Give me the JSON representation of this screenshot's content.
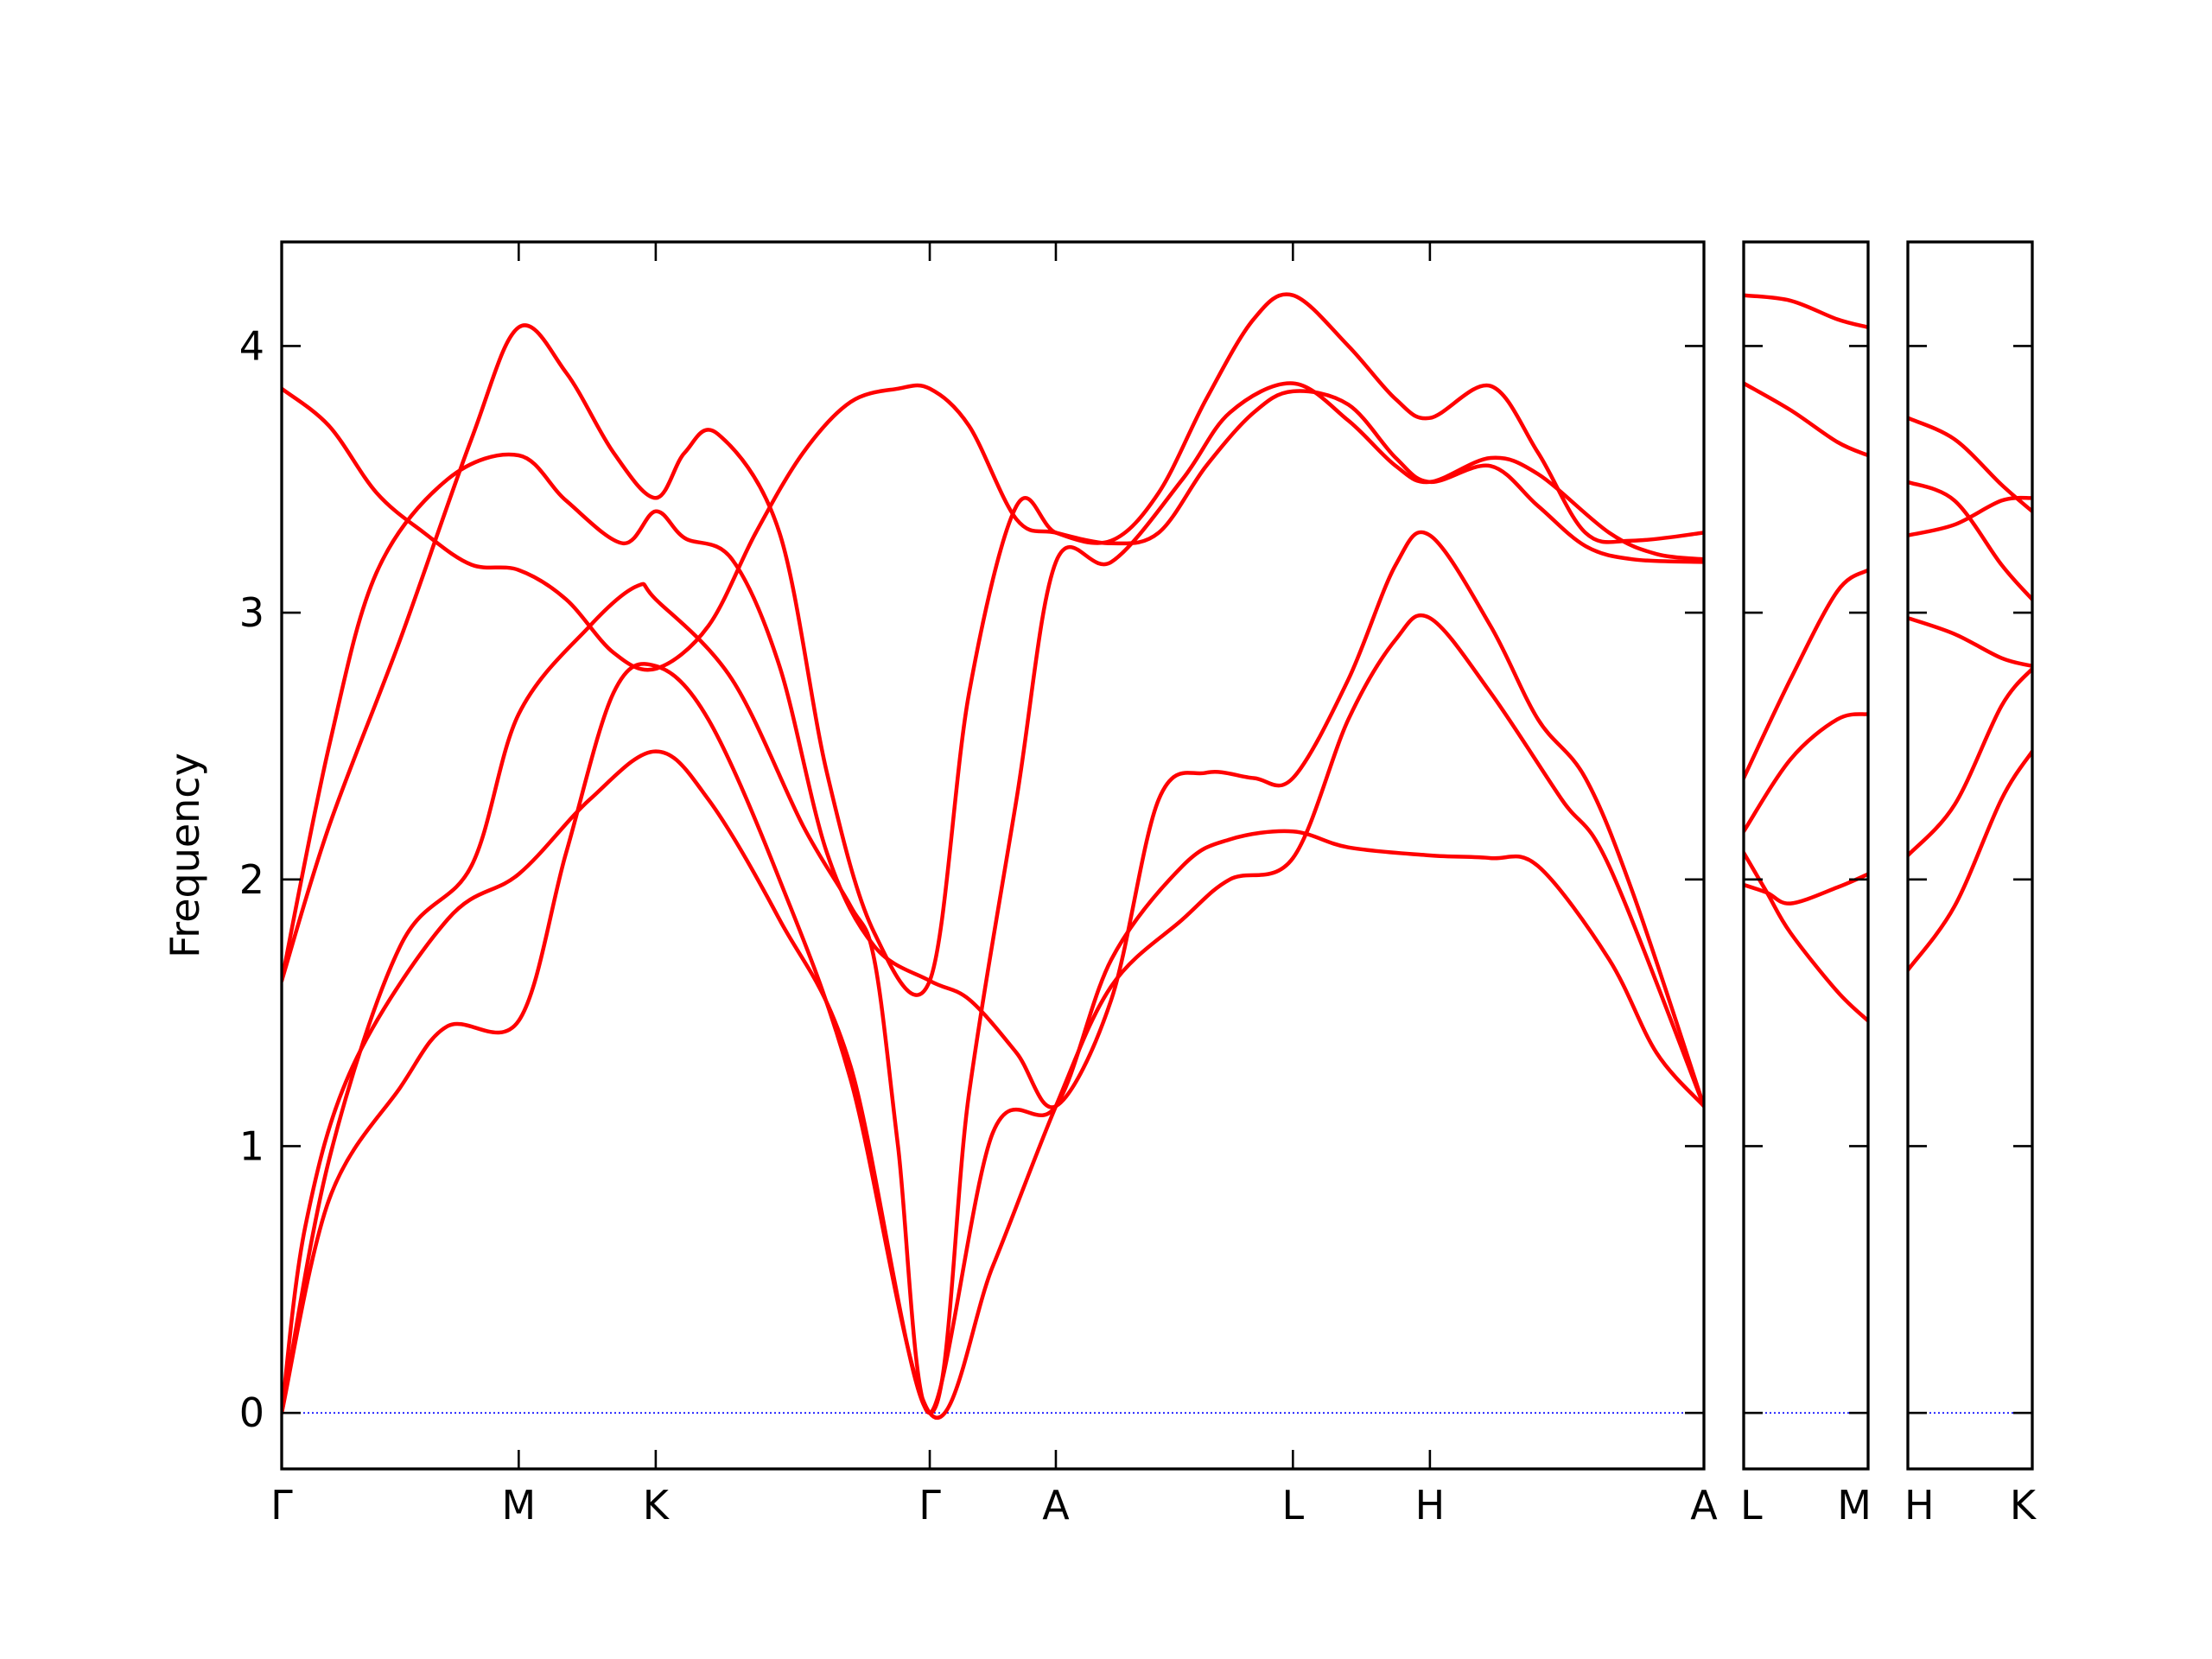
{
  "chart_data": {
    "type": "line",
    "ylabel": "Frequency",
    "ylim": [
      -0.21,
      4.39
    ],
    "yticks": [
      0,
      1,
      2,
      3,
      4
    ],
    "colors": {
      "bands": "#ff0000",
      "zero_line": "#0000ff",
      "axes": "#000000"
    },
    "grid": false,
    "panels": [
      {
        "xticks": [
          {
            "label": "Γ",
            "pos": 0
          },
          {
            "label": "M",
            "pos": 0.5
          },
          {
            "label": "K",
            "pos": 0.789
          },
          {
            "label": "Γ",
            "pos": 1.367
          },
          {
            "label": "A",
            "pos": 1.633
          },
          {
            "label": "L",
            "pos": 2.133
          },
          {
            "label": "H",
            "pos": 2.422
          },
          {
            "label": "A",
            "pos": 3.0
          }
        ],
        "x_range": [
          0,
          3.0
        ],
        "bands": [
          [
            [
              0,
              0
            ],
            [
              0.1,
              0.95
            ],
            [
              0.25,
              1.75
            ],
            [
              0.4,
              2.05
            ],
            [
              0.5,
              2.62
            ],
            [
              0.65,
              2.95
            ],
            [
              0.75,
              3.1
            ],
            [
              0.789,
              3.05
            ],
            [
              0.95,
              2.75
            ],
            [
              1.1,
              2.2
            ],
            [
              1.2,
              1.9
            ],
            [
              1.25,
              1.7
            ],
            [
              1.3,
              1.0
            ],
            [
              1.367,
              0
            ],
            [
              1.5,
              1.05
            ],
            [
              1.633,
              1.15
            ],
            [
              1.75,
              1.7
            ],
            [
              1.9,
              2.05
            ],
            [
              2.0,
              2.15
            ],
            [
              2.133,
              2.18
            ],
            [
              2.25,
              2.12
            ],
            [
              2.422,
              2.09
            ],
            [
              2.55,
              2.08
            ],
            [
              2.65,
              2.05
            ],
            [
              2.8,
              1.7
            ],
            [
              2.9,
              1.35
            ],
            [
              3.0,
              1.15
            ]
          ],
          [
            [
              0,
              0
            ],
            [
              0.1,
              0.8
            ],
            [
              0.25,
              1.22
            ],
            [
              0.35,
              1.45
            ],
            [
              0.5,
              1.47
            ],
            [
              0.6,
              2.1
            ],
            [
              0.7,
              2.7
            ],
            [
              0.789,
              2.8
            ],
            [
              0.9,
              2.6
            ],
            [
              1.05,
              2.0
            ],
            [
              1.2,
              1.25
            ],
            [
              1.367,
              0
            ],
            [
              1.5,
              0.55
            ],
            [
              1.633,
              1.15
            ],
            [
              1.75,
              1.6
            ],
            [
              1.9,
              1.85
            ],
            [
              2.0,
              2.0
            ],
            [
              2.133,
              2.08
            ],
            [
              2.25,
              2.6
            ],
            [
              2.35,
              2.9
            ],
            [
              2.422,
              2.98
            ],
            [
              2.55,
              2.7
            ],
            [
              2.7,
              2.3
            ],
            [
              2.8,
              2.05
            ],
            [
              3.0,
              1.15
            ]
          ],
          [
            [
              0,
              0
            ],
            [
              0.05,
              0.7
            ],
            [
              0.15,
              1.3
            ],
            [
              0.35,
              1.85
            ],
            [
              0.5,
              2.02
            ],
            [
              0.65,
              2.3
            ],
            [
              0.789,
              2.48
            ],
            [
              0.9,
              2.3
            ],
            [
              1.05,
              1.85
            ],
            [
              1.2,
              1.3
            ],
            [
              1.367,
              0
            ],
            [
              1.45,
              1.2
            ],
            [
              1.55,
              2.3
            ],
            [
              1.633,
              3.19
            ],
            [
              1.75,
              3.19
            ],
            [
              1.9,
              3.5
            ],
            [
              2.0,
              3.75
            ],
            [
              2.133,
              3.86
            ],
            [
              2.25,
              3.72
            ],
            [
              2.35,
              3.55
            ],
            [
              2.422,
              3.49
            ],
            [
              2.55,
              3.58
            ],
            [
              2.65,
              3.52
            ],
            [
              2.8,
              3.3
            ],
            [
              2.9,
              3.22
            ],
            [
              3.0,
              3.2
            ]
          ],
          [
            [
              0,
              1.62
            ],
            [
              0.1,
              2.5
            ],
            [
              0.2,
              3.15
            ],
            [
              0.35,
              3.5
            ],
            [
              0.5,
              3.59
            ],
            [
              0.6,
              3.42
            ],
            [
              0.72,
              3.26
            ],
            [
              0.789,
              3.38
            ],
            [
              0.85,
              3.28
            ],
            [
              0.95,
              3.2
            ],
            [
              1.05,
              2.8
            ],
            [
              1.15,
              2.1
            ],
            [
              1.25,
              1.75
            ],
            [
              1.367,
              1.62
            ],
            [
              1.45,
              1.55
            ],
            [
              1.55,
              1.35
            ],
            [
              1.633,
              1.15
            ],
            [
              1.75,
              1.55
            ],
            [
              1.85,
              2.3
            ],
            [
              1.95,
              2.4
            ],
            [
              2.05,
              2.38
            ],
            [
              2.133,
              2.38
            ],
            [
              2.25,
              2.75
            ],
            [
              2.35,
              3.18
            ],
            [
              2.422,
              3.29
            ],
            [
              2.55,
              2.95
            ],
            [
              2.65,
              2.6
            ],
            [
              2.75,
              2.38
            ],
            [
              2.85,
              1.95
            ],
            [
              3.0,
              1.15
            ]
          ],
          [
            [
              0,
              1.62
            ],
            [
              0.1,
              2.2
            ],
            [
              0.25,
              2.9
            ],
            [
              0.4,
              3.65
            ],
            [
              0.5,
              4.07
            ],
            [
              0.6,
              3.9
            ],
            [
              0.7,
              3.6
            ],
            [
              0.789,
              3.43
            ],
            [
              0.85,
              3.6
            ],
            [
              0.92,
              3.67
            ],
            [
              1.05,
              3.3
            ],
            [
              1.15,
              2.4
            ],
            [
              1.25,
              1.8
            ],
            [
              1.367,
              1.62
            ],
            [
              1.45,
              2.7
            ],
            [
              1.55,
              3.4
            ],
            [
              1.633,
              3.3
            ],
            [
              1.75,
              3.27
            ],
            [
              1.85,
              3.45
            ],
            [
              1.95,
              3.8
            ],
            [
              2.05,
              4.1
            ],
            [
              2.133,
              4.19
            ],
            [
              2.25,
              4.0
            ],
            [
              2.35,
              3.8
            ],
            [
              2.422,
              3.73
            ],
            [
              2.55,
              3.85
            ],
            [
              2.65,
              3.6
            ],
            [
              2.75,
              3.3
            ],
            [
              2.85,
              3.27
            ],
            [
              3.0,
              3.3
            ]
          ],
          [
            [
              0,
              3.84
            ],
            [
              0.1,
              3.7
            ],
            [
              0.2,
              3.45
            ],
            [
              0.3,
              3.3
            ],
            [
              0.4,
              3.18
            ],
            [
              0.5,
              3.16
            ],
            [
              0.6,
              3.05
            ],
            [
              0.7,
              2.85
            ],
            [
              0.789,
              2.79
            ],
            [
              0.9,
              2.95
            ],
            [
              1.0,
              3.3
            ],
            [
              1.1,
              3.6
            ],
            [
              1.2,
              3.79
            ],
            [
              1.3,
              3.84
            ],
            [
              1.367,
              3.84
            ],
            [
              1.45,
              3.7
            ],
            [
              1.55,
              3.35
            ],
            [
              1.633,
              3.3
            ],
            [
              1.75,
              3.26
            ],
            [
              1.85,
              3.3
            ],
            [
              1.95,
              3.55
            ],
            [
              2.05,
              3.75
            ],
            [
              2.133,
              3.83
            ],
            [
              2.25,
              3.78
            ],
            [
              2.35,
              3.58
            ],
            [
              2.422,
              3.49
            ],
            [
              2.55,
              3.55
            ],
            [
              2.65,
              3.4
            ],
            [
              2.75,
              3.25
            ],
            [
              2.85,
              3.2
            ],
            [
              3.0,
              3.19
            ]
          ]
        ]
      },
      {
        "xticks": [
          {
            "label": "L",
            "pos": 0
          },
          {
            "label": "M",
            "pos": 0.266
          }
        ],
        "x_range": [
          0,
          0.266
        ],
        "bands": [
          [
            [
              0,
              4.19
            ],
            [
              0.1,
              4.17
            ],
            [
              0.2,
              4.1
            ],
            [
              0.266,
              4.07
            ]
          ],
          [
            [
              0,
              3.86
            ],
            [
              0.1,
              3.76
            ],
            [
              0.2,
              3.64
            ],
            [
              0.266,
              3.59
            ]
          ],
          [
            [
              0,
              2.38
            ],
            [
              0.1,
              2.75
            ],
            [
              0.2,
              3.08
            ],
            [
              0.266,
              3.16
            ]
          ],
          [
            [
              0,
              2.18
            ],
            [
              0.1,
              2.45
            ],
            [
              0.2,
              2.6
            ],
            [
              0.266,
              2.62
            ]
          ],
          [
            [
              0,
              2.1
            ],
            [
              0.05,
              1.95
            ],
            [
              0.1,
              1.8
            ],
            [
              0.2,
              1.58
            ],
            [
              0.266,
              1.47
            ]
          ],
          [
            [
              0,
              1.98
            ],
            [
              0.05,
              1.95
            ],
            [
              0.1,
              1.91
            ],
            [
              0.2,
              1.97
            ],
            [
              0.266,
              2.02
            ]
          ]
        ]
      },
      {
        "xticks": [
          {
            "label": "H",
            "pos": 0
          },
          {
            "label": "K",
            "pos": 0.266
          }
        ],
        "x_range": [
          0,
          0.266
        ],
        "bands": [
          [
            [
              0,
              3.73
            ],
            [
              0.1,
              3.65
            ],
            [
              0.2,
              3.48
            ],
            [
              0.266,
              3.38
            ]
          ],
          [
            [
              0,
              3.49
            ],
            [
              0.1,
              3.42
            ],
            [
              0.2,
              3.18
            ],
            [
              0.266,
              3.05
            ]
          ],
          [
            [
              0,
              3.29
            ],
            [
              0.1,
              3.33
            ],
            [
              0.2,
              3.42
            ],
            [
              0.266,
              3.43
            ]
          ],
          [
            [
              0,
              2.98
            ],
            [
              0.1,
              2.92
            ],
            [
              0.2,
              2.83
            ],
            [
              0.266,
              2.8
            ]
          ],
          [
            [
              0,
              2.09
            ],
            [
              0.1,
              2.28
            ],
            [
              0.2,
              2.65
            ],
            [
              0.266,
              2.79
            ]
          ],
          [
            [
              0,
              1.66
            ],
            [
              0.1,
              1.9
            ],
            [
              0.2,
              2.3
            ],
            [
              0.266,
              2.48
            ]
          ]
        ]
      }
    ]
  }
}
